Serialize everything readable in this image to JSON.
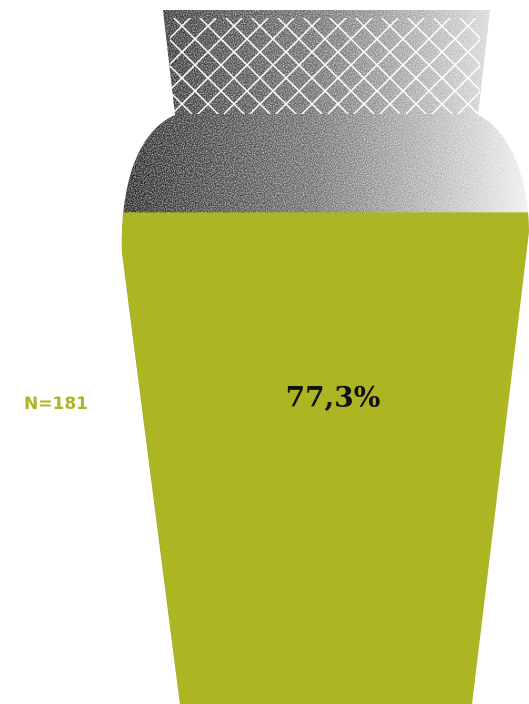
{
  "chart_data": {
    "type": "vase-fill",
    "values": [
      77.3
    ],
    "value_labels": [
      "77,3%"
    ],
    "annotation": "N=181",
    "color": "#adb522",
    "ylim": [
      0,
      100
    ]
  }
}
